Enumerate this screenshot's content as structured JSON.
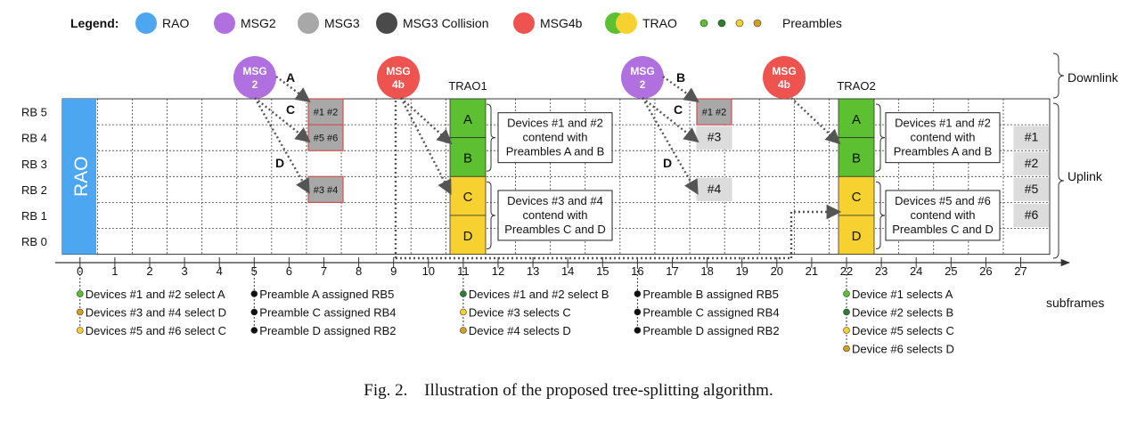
{
  "legend": {
    "title": "Legend:",
    "items": [
      {
        "label": "RAO",
        "color": "#4da6f0"
      },
      {
        "label": "MSG2",
        "color": "#b070e0"
      },
      {
        "label": "MSG3",
        "color": "#a8a8a8"
      },
      {
        "label": "MSG3 Collision",
        "color": "#4a4a4a"
      },
      {
        "label": "MSG4b",
        "color": "#ef5350"
      },
      {
        "label": "TRAO",
        "colors": [
          "#5cc030",
          "#f6d12f"
        ]
      },
      {
        "label": "Preambles",
        "colors": [
          "#5cc030",
          "#2e7d32",
          "#f6d12f",
          "#d4a020"
        ]
      }
    ]
  },
  "side_labels": {
    "downlink": "Downlink",
    "uplink": "Uplink"
  },
  "rows": [
    "RB 5",
    "RB 4",
    "RB 3",
    "RB 2",
    "RB 1",
    "RB 0"
  ],
  "subframes": [
    "0",
    "1",
    "2",
    "3",
    "4",
    "5",
    "6",
    "7",
    "8",
    "9",
    "10",
    "11",
    "12",
    "13",
    "14",
    "15",
    "16",
    "17",
    "18",
    "19",
    "20",
    "21",
    "22",
    "23",
    "24",
    "25",
    "26",
    "27"
  ],
  "axis_label": "subframes",
  "rao_label": "RAO",
  "msg2_label": [
    "MSG",
    "2"
  ],
  "msg4b_label": [
    "MSG",
    "4b"
  ],
  "trao": [
    "TRAO1",
    "TRAO2"
  ],
  "slots": [
    "A",
    "B",
    "C",
    "D"
  ],
  "arrow_labels": [
    "A",
    "B",
    "C",
    "D"
  ],
  "msg3_cells_first": [
    "#1 #2",
    "#5 #6",
    "#3 #4"
  ],
  "msg3_cells_second": [
    "#1 #2",
    "#3",
    "#4"
  ],
  "msg3_cells_last": [
    "#1",
    "#2",
    "#5",
    "#6"
  ],
  "boxes": [
    [
      "Devices #1 and #2",
      "contend with",
      "Preambles A and B"
    ],
    [
      "Devices #3 and #4",
      "contend with",
      "Preambles C and D"
    ],
    [
      "Devices #1 and #2",
      "contend with",
      "Preambles A and B"
    ],
    [
      "Devices #5 and #6",
      "contend with",
      "Preambles C and D"
    ]
  ],
  "events": [
    {
      "subframe": 0,
      "items": [
        {
          "text": "Devices #1 and #2 select A",
          "color": "#5cc030"
        },
        {
          "text": "Devices #3 and #4 select D",
          "color": "#d4a020"
        },
        {
          "text": "Devices #5 and #6 select C",
          "color": "#f6d12f"
        }
      ]
    },
    {
      "subframe": 5,
      "items": [
        {
          "text": "Preamble A assigned RB5",
          "color": "#111111"
        },
        {
          "text": "Preamble C assigned RB4",
          "color": "#111111"
        },
        {
          "text": "Preamble D assigned RB2",
          "color": "#111111"
        }
      ]
    },
    {
      "subframe": 11,
      "items": [
        {
          "text": "Devices #1 and #2 select B",
          "color": "#2e7d32"
        },
        {
          "text": "Device #3 selects C",
          "color": "#f6d12f"
        },
        {
          "text": "Device #4 selects D",
          "color": "#d4a020"
        }
      ]
    },
    {
      "subframe": 16,
      "items": [
        {
          "text": "Preamble B assigned RB5",
          "color": "#111111"
        },
        {
          "text": "Preamble C assigned RB4",
          "color": "#111111"
        },
        {
          "text": "Preamble D assigned RB2",
          "color": "#111111"
        }
      ]
    },
    {
      "subframe": 22,
      "items": [
        {
          "text": "Device #1 selects A",
          "color": "#5cc030"
        },
        {
          "text": "Device #2 selects B",
          "color": "#2e7d32"
        },
        {
          "text": "Device #5 selects C",
          "color": "#f6d12f"
        },
        {
          "text": "Device #6 selects D",
          "color": "#d4a020"
        }
      ]
    }
  ],
  "caption": {
    "fig": "Fig. 2.",
    "text": "Illustration of the proposed tree-splitting algorithm."
  },
  "colors": {
    "rao": "#4da6f0",
    "msg2": "#b070e0",
    "msg4b": "#ef5350",
    "msg3": "#a8a8a8",
    "msg3_stroke": "#d05050",
    "msg3_dark": "#4a4a4a",
    "green": "#5cc030",
    "yellow": "#f6d12f"
  }
}
